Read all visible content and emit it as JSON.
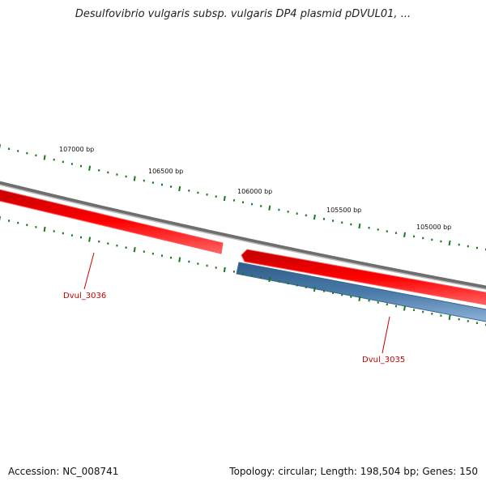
{
  "title": "Desulfovibrio vulgaris subsp. vulgaris DP4 plasmid pDVUL01, ...",
  "position_labels": [
    "107000 bp",
    "106500 bp",
    "106000 bp",
    "105500 bp",
    "105000 bp"
  ],
  "genes": [
    {
      "name": "Dvul_3036",
      "strand": "reverse"
    },
    {
      "name": "Dvul_3035",
      "strand": "forward"
    }
  ],
  "colors": {
    "backbone": "#808080",
    "reverse_gene": "#ff0000",
    "forward_gene": "#4a7aa8",
    "gene_label": "#cc0000",
    "ticks": "#1a7a1a"
  },
  "footer": {
    "accession": "Accession: NC_008741",
    "summary": "Topology: circular; Length: 198,504 bp; Genes: 150"
  }
}
